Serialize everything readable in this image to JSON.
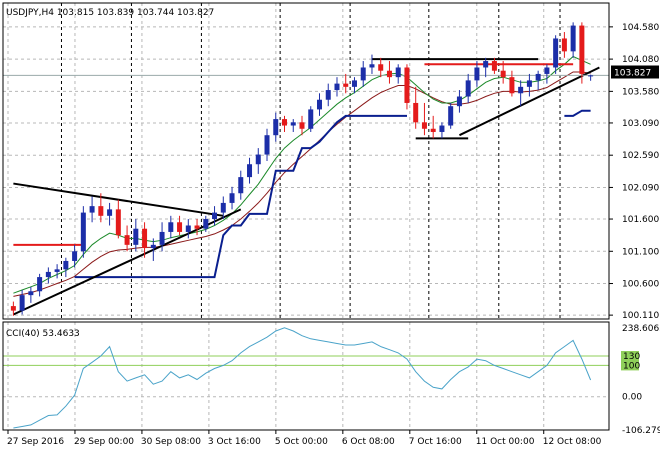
{
  "title": "USDJPY,H4  103.815 103.839 103.744 103.827",
  "price_tag": "103.827",
  "colors": {
    "bull": "#1c2ea8",
    "bear": "#e41b1b",
    "ma_green": "#1c8a2a",
    "ma_red": "#8b1a1a",
    "sar": "#0a1f8f",
    "cci": "#4aa3c9",
    "cci_levels": "#8fcf5a",
    "trend": "#000000",
    "res": "#e41b1b"
  },
  "chart_data": [
    {
      "type": "candlestick",
      "title": "USDJPY,H4  103.815 103.839 103.744 103.827",
      "ylim": [
        100.05,
        104.95
      ],
      "y_ticks": [
        "104.580",
        "104.080",
        "103.580",
        "103.090",
        "102.590",
        "102.090",
        "101.600",
        "101.100",
        "100.600",
        "100.110"
      ],
      "x_ticks": [
        "27 Sep 2016",
        "29 Sep 00:00",
        "30 Sep 08:00",
        "3 Oct 16:00",
        "5 Oct 00:00",
        "6 Oct 08:00",
        "7 Oct 16:00",
        "11 Oct 00:00",
        "12 Oct 08:00"
      ],
      "ohlc": [
        [
          100.25,
          100.32,
          100.1,
          100.18
        ],
        [
          100.18,
          100.5,
          100.12,
          100.42
        ],
        [
          100.42,
          100.55,
          100.3,
          100.48
        ],
        [
          100.48,
          100.75,
          100.4,
          100.7
        ],
        [
          100.7,
          100.85,
          100.6,
          100.78
        ],
        [
          100.78,
          100.9,
          100.68,
          100.82
        ],
        [
          100.82,
          101.0,
          100.7,
          100.95
        ],
        [
          100.95,
          101.2,
          100.85,
          101.1
        ],
        [
          101.1,
          101.8,
          101.0,
          101.7
        ],
        [
          101.7,
          101.95,
          101.55,
          101.8
        ],
        [
          101.8,
          102.0,
          101.55,
          101.65
        ],
        [
          101.65,
          101.85,
          101.5,
          101.75
        ],
        [
          101.75,
          101.9,
          101.3,
          101.35
        ],
        [
          101.35,
          101.5,
          101.1,
          101.2
        ],
        [
          101.2,
          101.6,
          101.1,
          101.45
        ],
        [
          101.45,
          101.55,
          101.0,
          101.15
        ],
        [
          101.15,
          101.3,
          100.95,
          101.2
        ],
        [
          101.2,
          101.55,
          101.1,
          101.4
        ],
        [
          101.4,
          101.65,
          101.3,
          101.55
        ],
        [
          101.55,
          101.65,
          101.35,
          101.4
        ],
        [
          101.4,
          101.6,
          101.3,
          101.5
        ],
        [
          101.5,
          101.6,
          101.35,
          101.45
        ],
        [
          101.45,
          101.65,
          101.4,
          101.6
        ],
        [
          101.6,
          101.8,
          101.5,
          101.7
        ],
        [
          101.7,
          101.95,
          101.6,
          101.85
        ],
        [
          101.85,
          102.1,
          101.75,
          102.0
        ],
        [
          102.0,
          102.35,
          101.9,
          102.25
        ],
        [
          102.25,
          102.55,
          102.15,
          102.45
        ],
        [
          102.45,
          102.7,
          102.3,
          102.6
        ],
        [
          102.6,
          103.0,
          102.5,
          102.9
        ],
        [
          102.9,
          103.25,
          102.8,
          103.15
        ],
        [
          103.15,
          103.2,
          102.95,
          103.05
        ],
        [
          103.05,
          103.15,
          102.95,
          103.1
        ],
        [
          103.1,
          103.2,
          102.9,
          103.0
        ],
        [
          103.0,
          103.35,
          102.95,
          103.3
        ],
        [
          103.3,
          103.55,
          103.2,
          103.45
        ],
        [
          103.45,
          103.7,
          103.35,
          103.6
        ],
        [
          103.6,
          103.8,
          103.5,
          103.7
        ],
        [
          103.7,
          103.85,
          103.55,
          103.65
        ],
        [
          103.65,
          103.8,
          103.55,
          103.75
        ],
        [
          103.75,
          104.05,
          103.65,
          103.95
        ],
        [
          103.95,
          104.15,
          103.85,
          104.0
        ],
        [
          104.0,
          104.1,
          103.8,
          103.9
        ],
        [
          103.9,
          104.05,
          103.7,
          103.8
        ],
        [
          103.8,
          104.0,
          103.7,
          103.95
        ],
        [
          103.95,
          104.0,
          103.3,
          103.4
        ],
        [
          103.4,
          103.65,
          103.0,
          103.1
        ],
        [
          103.1,
          103.4,
          102.9,
          103.0
        ],
        [
          103.0,
          103.2,
          102.85,
          102.95
        ],
        [
          102.95,
          103.1,
          102.85,
          103.05
        ],
        [
          103.05,
          103.4,
          103.0,
          103.35
        ],
        [
          103.35,
          103.6,
          103.25,
          103.5
        ],
        [
          103.5,
          103.85,
          103.4,
          103.75
        ],
        [
          103.75,
          104.05,
          103.65,
          103.95
        ],
        [
          103.95,
          104.1,
          103.8,
          104.05
        ],
        [
          104.05,
          104.1,
          103.85,
          103.9
        ],
        [
          103.9,
          104.05,
          103.7,
          103.8
        ],
        [
          103.8,
          103.9,
          103.5,
          103.55
        ],
        [
          103.55,
          103.75,
          103.35,
          103.65
        ],
        [
          103.65,
          103.85,
          103.5,
          103.75
        ],
        [
          103.75,
          103.9,
          103.6,
          103.85
        ],
        [
          103.85,
          104.0,
          103.7,
          103.95
        ],
        [
          103.95,
          104.45,
          103.85,
          104.4
        ],
        [
          104.4,
          104.5,
          104.1,
          104.2
        ],
        [
          104.2,
          104.65,
          104.1,
          104.6
        ],
        [
          104.6,
          104.65,
          103.7,
          103.85
        ],
        [
          103.815,
          103.839,
          103.744,
          103.827
        ]
      ],
      "ma_green": [
        100.45,
        100.5,
        100.55,
        100.6,
        100.68,
        100.74,
        100.8,
        100.88,
        101.05,
        101.2,
        101.3,
        101.38,
        101.35,
        101.3,
        101.3,
        101.27,
        101.25,
        101.27,
        101.31,
        101.34,
        101.37,
        101.4,
        101.44,
        101.5,
        101.58,
        101.68,
        101.82,
        101.98,
        102.14,
        102.34,
        102.54,
        102.7,
        102.82,
        102.92,
        103.02,
        103.14,
        103.26,
        103.38,
        103.48,
        103.56,
        103.66,
        103.76,
        103.82,
        103.85,
        103.86,
        103.8,
        103.68,
        103.56,
        103.46,
        103.4,
        103.4,
        103.44,
        103.52,
        103.62,
        103.72,
        103.78,
        103.8,
        103.76,
        103.72,
        103.72,
        103.74,
        103.78,
        103.9,
        104.0,
        104.12,
        104.06,
        104.0
      ],
      "ma_red": [
        100.4,
        100.43,
        100.46,
        100.5,
        100.55,
        100.6,
        100.65,
        100.71,
        100.82,
        100.93,
        101.02,
        101.09,
        101.12,
        101.13,
        101.15,
        101.16,
        101.16,
        101.18,
        101.21,
        101.24,
        101.27,
        101.3,
        101.33,
        101.37,
        101.43,
        101.5,
        101.6,
        101.72,
        101.85,
        102.0,
        102.17,
        102.32,
        102.45,
        102.57,
        102.69,
        102.82,
        102.95,
        103.07,
        103.18,
        103.28,
        103.38,
        103.48,
        103.56,
        103.62,
        103.67,
        103.67,
        103.62,
        103.55,
        103.48,
        103.42,
        103.38,
        103.38,
        103.4,
        103.44,
        103.5,
        103.55,
        103.58,
        103.58,
        103.57,
        103.58,
        103.6,
        103.64,
        103.72,
        103.8,
        103.88,
        103.88,
        103.86
      ],
      "sar": [
        null,
        null,
        null,
        null,
        null,
        null,
        null,
        100.7,
        100.7,
        100.7,
        100.7,
        100.7,
        100.7,
        100.7,
        100.7,
        100.7,
        100.7,
        100.7,
        100.7,
        100.7,
        100.7,
        100.7,
        100.7,
        100.7,
        101.35,
        101.5,
        101.5,
        101.68,
        101.68,
        101.68,
        102.35,
        102.35,
        102.35,
        102.7,
        102.7,
        102.8,
        102.95,
        103.1,
        103.2,
        103.2,
        103.2,
        103.2,
        103.2,
        103.2,
        103.2,
        103.2,
        null,
        null,
        null,
        null,
        null,
        null,
        null,
        null,
        null,
        null,
        null,
        null,
        null,
        null,
        null,
        null,
        null,
        103.2,
        103.2,
        103.28,
        103.28
      ],
      "trendlines": [
        {
          "x1": 0,
          "y1": 100.12,
          "x2": 26,
          "y2": 101.75
        },
        {
          "x1": 0,
          "y1": 102.15,
          "x2": 24,
          "y2": 101.65
        },
        {
          "x1": 41,
          "y1": 104.08,
          "x2": 60,
          "y2": 104.08
        },
        {
          "x1": 46,
          "y1": 102.85,
          "x2": 52,
          "y2": 102.85
        },
        {
          "x1": 51,
          "y1": 102.9,
          "x2": 67,
          "y2": 103.95
        }
      ],
      "resistance": [
        {
          "x1": 0,
          "y1": 101.2,
          "x2": 8,
          "y2": 101.2
        },
        {
          "x1": 47,
          "y1": 104.0,
          "x2": 64,
          "y2": 104.0
        }
      ],
      "vlines": [
        5.5,
        13.5,
        21.5,
        30.5,
        38.5,
        47.5,
        55.5,
        62.5
      ]
    },
    {
      "type": "line",
      "title": "CCI(40) 53.4633",
      "ylim": [
        -106.2794,
        238.6063
      ],
      "y_ticks": [
        "238.6063",
        "0.00",
        "-106.2794"
      ],
      "level_labels": [
        "130",
        "100"
      ],
      "levels": [
        130,
        100
      ],
      "values": [
        -100,
        -95,
        -90,
        -75,
        -60,
        -58,
        -30,
        5,
        90,
        110,
        130,
        160,
        80,
        50,
        60,
        70,
        40,
        50,
        80,
        60,
        70,
        55,
        75,
        90,
        100,
        115,
        140,
        160,
        175,
        190,
        210,
        220,
        210,
        195,
        185,
        180,
        175,
        170,
        165,
        165,
        170,
        175,
        160,
        150,
        140,
        120,
        80,
        50,
        30,
        25,
        55,
        80,
        95,
        120,
        115,
        100,
        90,
        80,
        70,
        60,
        80,
        100,
        140,
        160,
        180,
        120,
        53.46
      ]
    }
  ]
}
